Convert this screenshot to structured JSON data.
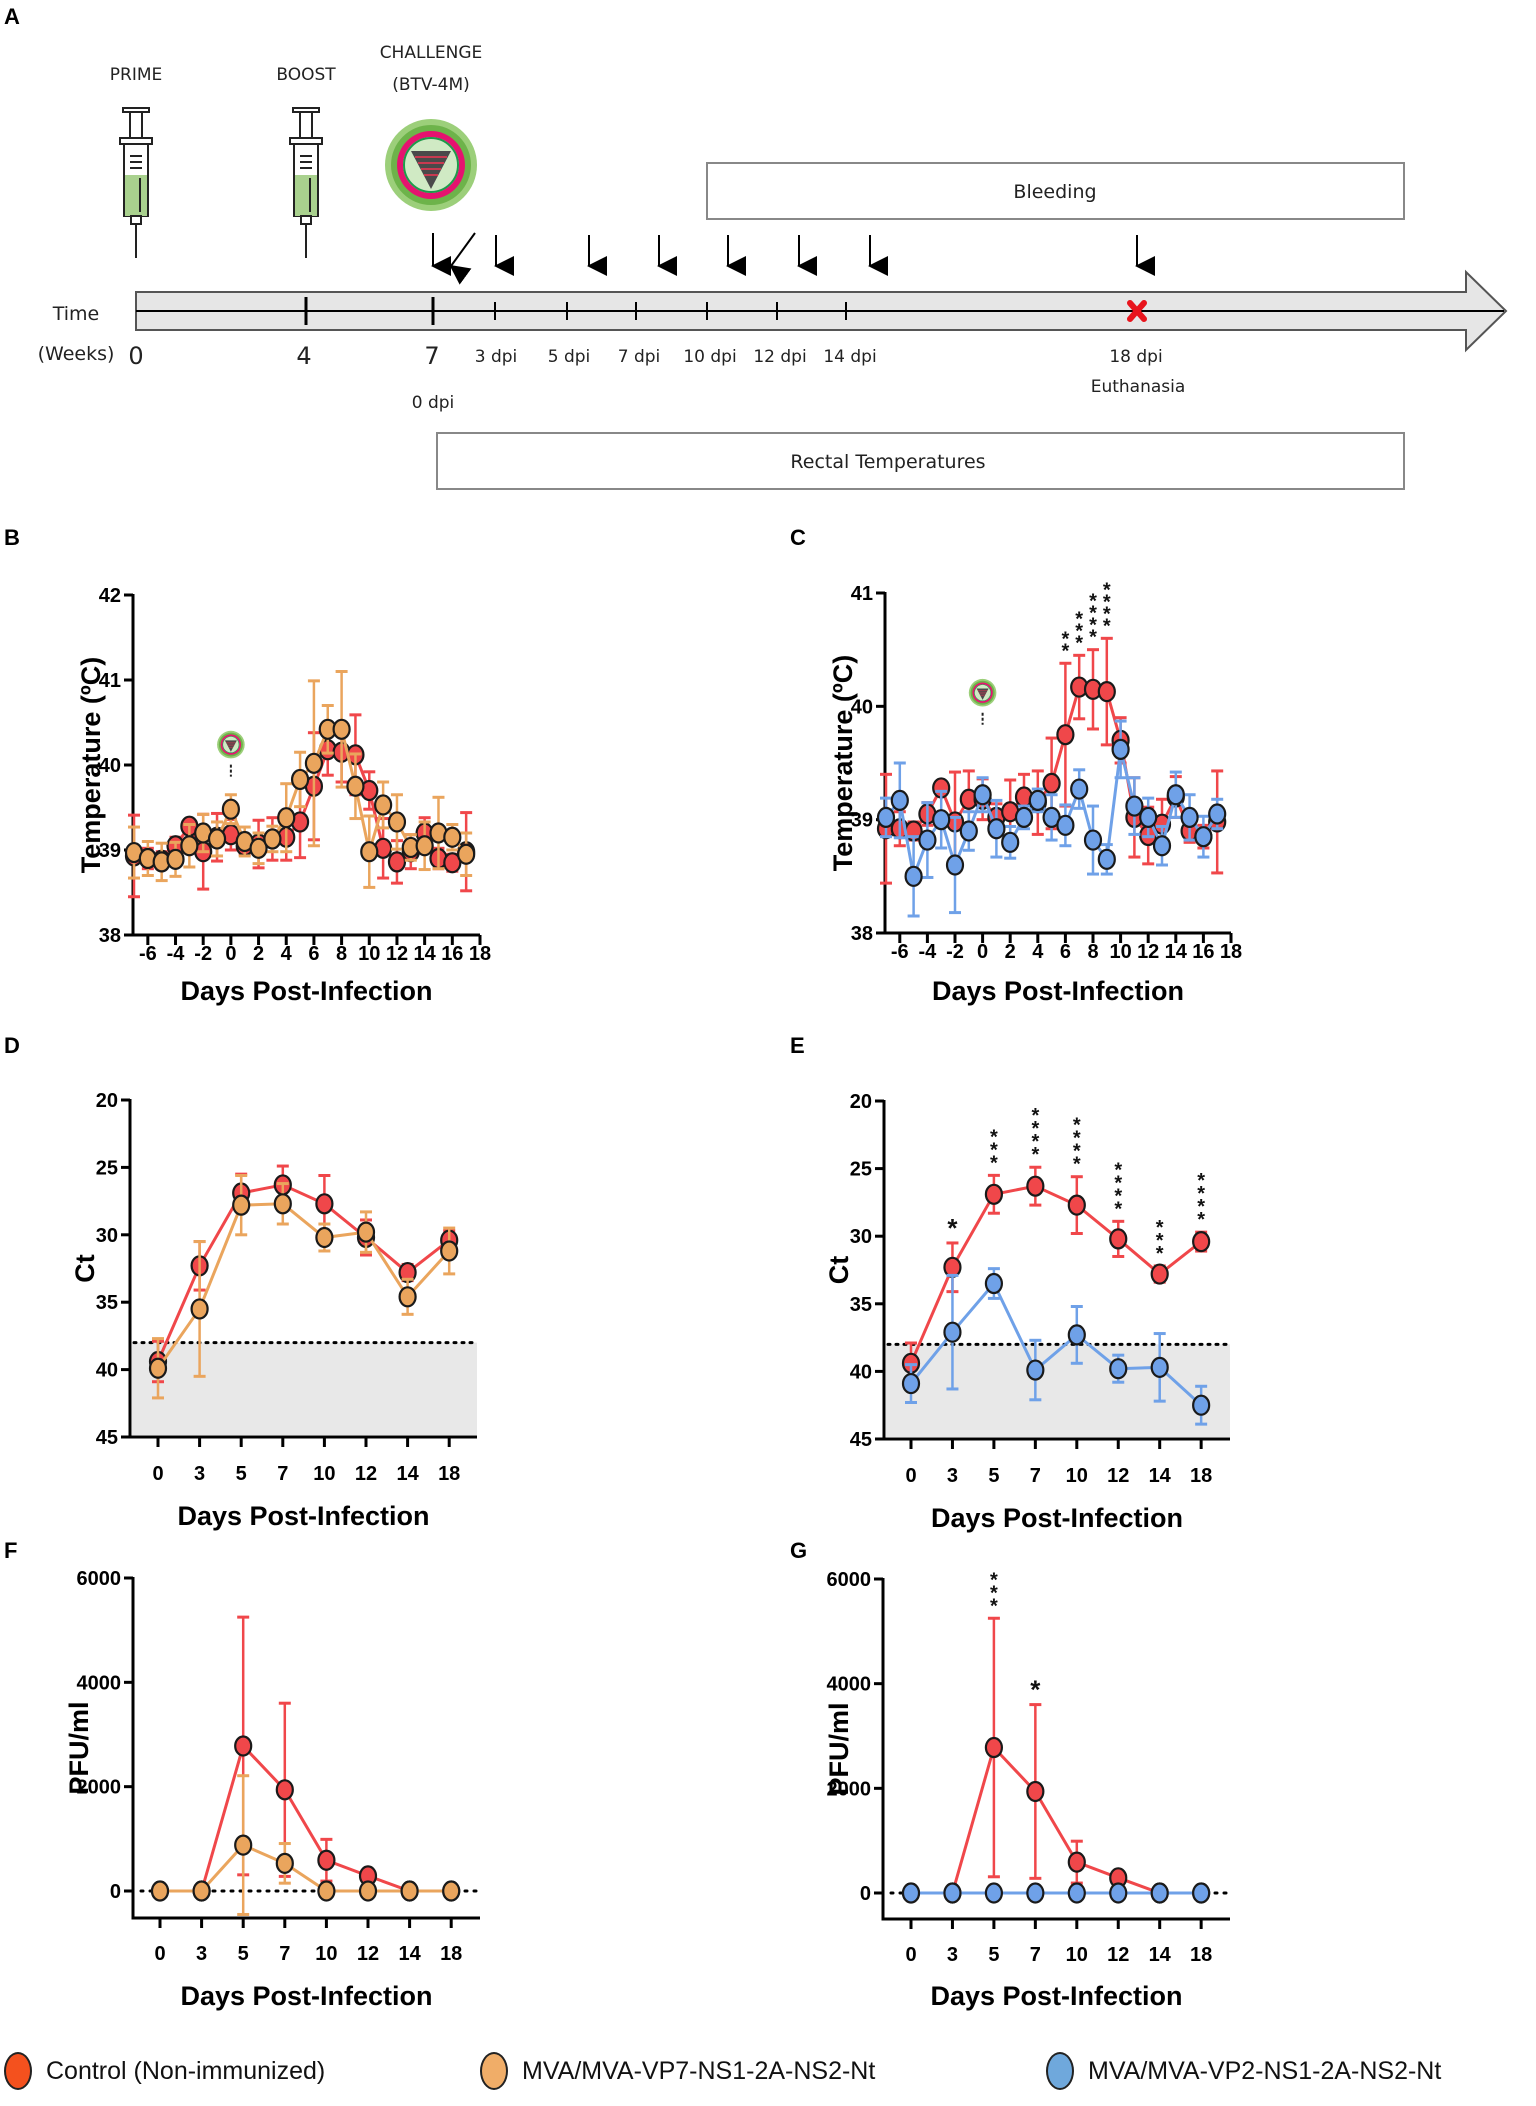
{
  "figure": {
    "panel_labels": [
      "A",
      "B",
      "C",
      "D",
      "E",
      "F",
      "G"
    ]
  },
  "timeline": {
    "events": {
      "prime": "PRIME",
      "boost": "BOOST",
      "challenge_line1": "CHALLENGE",
      "challenge_line2": "(BTV-4M)"
    },
    "time_label_line1": "Time",
    "time_label_line2": "(Weeks)",
    "week_ticks": [
      "0",
      "4",
      "7"
    ],
    "zero_dpi": "0 dpi",
    "dpi_ticks": [
      "3 dpi",
      "5 dpi",
      "7 dpi",
      "10 dpi",
      "12 dpi",
      "14 dpi",
      "18 dpi"
    ],
    "euthanasia": "Euthanasia",
    "bleeding_label": "Bleeding",
    "rectal_label": "Rectal Temperatures",
    "colors": {
      "syringe_fill": "#a9d18e",
      "bar_fill": "#e6e6e6",
      "euthanasia_x": "#e8141c"
    }
  },
  "legend": {
    "items": [
      {
        "label": "Control (Non-immunized)",
        "color": "#f4511e"
      },
      {
        "label": "MVA/MVA-VP7-NS1-2A-NS2-Nt",
        "color": "#f0ad68"
      },
      {
        "label": "MVA/MVA-VP2-NS1-2A-NS2-Nt",
        "color": "#6fa8dc"
      }
    ]
  },
  "chart_data": [
    {
      "panel": "B",
      "type": "line",
      "xlabel": "Days Post-Infection",
      "ylabel": "Temperature (ºC)",
      "xlim": [
        -7,
        18
      ],
      "ylim": [
        38,
        42
      ],
      "xticks": [
        "-6",
        "-4",
        "-2",
        "0",
        "2",
        "4",
        "6",
        "8",
        "10",
        "12",
        "14",
        "16",
        "18"
      ],
      "yticks": [
        "38",
        "39",
        "40",
        "41",
        "42"
      ],
      "annotation": "virus challenge icon at day 0",
      "x": [
        -7,
        -6,
        -5,
        -4,
        -3,
        -2,
        -1,
        0,
        1,
        2,
        3,
        4,
        5,
        6,
        7,
        8,
        9,
        10,
        11,
        12,
        13,
        14,
        15,
        16,
        17
      ],
      "series": [
        {
          "name": "Control (Non-immunized)",
          "color": "#f0474a",
          "values": [
            38.93,
            38.9,
            38.88,
            39.05,
            39.28,
            38.98,
            39.15,
            39.18,
            39.05,
            39.07,
            39.13,
            39.15,
            39.33,
            39.75,
            40.18,
            40.15,
            40.12,
            39.7,
            39.02,
            38.86,
            38.98,
            39.2,
            38.9,
            38.85,
            38.98
          ],
          "err": [
            0.48,
            0.12,
            0.1,
            0.1,
            0.05,
            0.44,
            0.28,
            0.18,
            0.1,
            0.28,
            0.25,
            0.27,
            0.42,
            0.63,
            0.3,
            0.35,
            0.47,
            0.22,
            0.35,
            0.25,
            0.2,
            0.18,
            0.12,
            0.1,
            0.46
          ]
        },
        {
          "name": "MVA/MVA-VP7-NS1-2A-NS2-Nt",
          "color": "#eaa55d",
          "values": [
            38.97,
            38.9,
            38.86,
            38.89,
            39.05,
            39.2,
            39.13,
            39.48,
            39.1,
            39.02,
            39.13,
            39.38,
            39.83,
            40.02,
            40.42,
            40.42,
            39.75,
            38.98,
            39.53,
            39.33,
            39.03,
            39.05,
            39.2,
            39.15,
            38.95
          ],
          "err": [
            0.3,
            0.2,
            0.22,
            0.2,
            0.25,
            0.22,
            0.2,
            0.17,
            0.17,
            0.18,
            0.15,
            0.4,
            0.32,
            0.97,
            0.28,
            0.68,
            0.38,
            0.42,
            0.27,
            0.32,
            0.15,
            0.28,
            0.42,
            0.15,
            0.25
          ]
        }
      ]
    },
    {
      "panel": "C",
      "type": "line",
      "xlabel": "Days Post-Infection",
      "ylabel": "Temperature (ºC)",
      "xlim": [
        -7,
        18
      ],
      "ylim": [
        38,
        41
      ],
      "xticks": [
        "-6",
        "-4",
        "-2",
        "0",
        "2",
        "4",
        "6",
        "8",
        "10",
        "12",
        "14",
        "16",
        "18"
      ],
      "yticks": [
        "38",
        "39",
        "40",
        "41"
      ],
      "annotation": "virus challenge icon at day 0",
      "significance": [
        {
          "x": 6,
          "label": "**"
        },
        {
          "x": 7,
          "label": "***"
        },
        {
          "x": 8,
          "label": "****"
        },
        {
          "x": 9,
          "label": "****"
        }
      ],
      "x": [
        -7,
        -6,
        -5,
        -4,
        -3,
        -2,
        -1,
        0,
        1,
        2,
        3,
        4,
        5,
        6,
        7,
        8,
        9,
        10,
        11,
        12,
        13,
        14,
        15,
        16,
        17
      ],
      "series": [
        {
          "name": "Control (Non-immunized)",
          "color": "#f0474a",
          "values": [
            38.92,
            38.92,
            38.9,
            39.05,
            39.28,
            38.98,
            39.18,
            39.18,
            39.02,
            39.07,
            39.2,
            39.15,
            39.32,
            39.75,
            40.17,
            40.15,
            40.13,
            39.7,
            39.02,
            38.86,
            38.96,
            39.2,
            38.9,
            38.85,
            38.98
          ],
          "err": [
            0.48,
            0.15,
            0.08,
            0.1,
            0.05,
            0.44,
            0.25,
            0.18,
            0.12,
            0.28,
            0.2,
            0.28,
            0.4,
            0.63,
            0.28,
            0.35,
            0.47,
            0.2,
            0.35,
            0.25,
            0.22,
            0.18,
            0.1,
            0.1,
            0.45
          ]
        },
        {
          "name": "MVA/MVA-VP2-NS1-2A-NS2-Nt",
          "color": "#6fa1e8",
          "values": [
            39.02,
            39.17,
            38.5,
            38.82,
            39.0,
            38.6,
            38.9,
            39.22,
            38.92,
            38.8,
            39.02,
            39.17,
            39.02,
            38.95,
            39.27,
            38.82,
            38.65,
            39.62,
            39.12,
            39.02,
            38.77,
            39.22,
            39.02,
            38.85,
            39.05
          ],
          "err": [
            0.17,
            0.33,
            0.35,
            0.33,
            0.25,
            0.42,
            0.17,
            0.15,
            0.25,
            0.14,
            0.1,
            0.1,
            0.2,
            0.18,
            0.17,
            0.3,
            0.13,
            0.25,
            0.25,
            0.17,
            0.17,
            0.2,
            0.2,
            0.18,
            0.13
          ]
        }
      ]
    },
    {
      "panel": "D",
      "type": "line",
      "xlabel": "Days Post-Infection",
      "ylabel": "Ct",
      "y_inverted": true,
      "ylim": [
        45,
        20
      ],
      "categories": [
        "0",
        "3",
        "5",
        "7",
        "10",
        "12",
        "14",
        "18"
      ],
      "yticks": [
        "20",
        "25",
        "30",
        "35",
        "40",
        "45"
      ],
      "detection_limit": 38,
      "shaded_region": [
        38,
        45
      ],
      "series": [
        {
          "name": "Control (Non-immunized)",
          "color": "#f0474a",
          "values": [
            39.4,
            32.3,
            26.9,
            26.3,
            27.7,
            30.2,
            32.8,
            30.4
          ],
          "err": [
            1.5,
            1.8,
            1.4,
            1.4,
            2.1,
            1.3,
            0.6,
            0.7
          ]
        },
        {
          "name": "MVA/MVA-VP7-NS1-2A-NS2-Nt",
          "color": "#eaa55d",
          "values": [
            39.9,
            35.5,
            27.8,
            27.7,
            30.2,
            29.8,
            34.6,
            31.2
          ],
          "err": [
            2.2,
            5.0,
            2.2,
            1.5,
            1.0,
            1.5,
            1.3,
            1.7
          ]
        }
      ]
    },
    {
      "panel": "E",
      "type": "line",
      "xlabel": "Days Post-Infection",
      "ylabel": "Ct",
      "y_inverted": true,
      "ylim": [
        45,
        20
      ],
      "categories": [
        "0",
        "3",
        "5",
        "7",
        "10",
        "12",
        "14",
        "18"
      ],
      "yticks": [
        "20",
        "25",
        "30",
        "35",
        "40",
        "45"
      ],
      "detection_limit": 38,
      "shaded_region": [
        38,
        45
      ],
      "significance": [
        {
          "x": "3",
          "label": "*"
        },
        {
          "x": "5",
          "label": "***"
        },
        {
          "x": "7",
          "label": "****"
        },
        {
          "x": "10",
          "label": "****"
        },
        {
          "x": "12",
          "label": "****"
        },
        {
          "x": "14",
          "label": "***"
        },
        {
          "x": "18",
          "label": "****"
        }
      ],
      "series": [
        {
          "name": "Control (Non-immunized)",
          "color": "#f0474a",
          "values": [
            39.4,
            32.3,
            26.9,
            26.3,
            27.7,
            30.2,
            32.8,
            30.4
          ],
          "err": [
            1.5,
            1.8,
            1.4,
            1.4,
            2.1,
            1.3,
            0.6,
            0.7
          ]
        },
        {
          "name": "MVA/MVA-VP2-NS1-2A-NS2-Nt",
          "color": "#6fa1e8",
          "values": [
            40.9,
            37.1,
            33.5,
            39.9,
            37.3,
            39.8,
            39.7,
            42.5
          ],
          "err": [
            1.4,
            4.2,
            1.1,
            2.2,
            2.1,
            1.0,
            2.5,
            1.4
          ]
        }
      ]
    },
    {
      "panel": "F",
      "type": "line",
      "xlabel": "Days Post-Infection",
      "ylabel": "PFU/ml",
      "ylim": [
        -500,
        6000
      ],
      "categories": [
        "0",
        "3",
        "5",
        "7",
        "10",
        "12",
        "14",
        "18"
      ],
      "yticks": [
        "0",
        "2000",
        "4000",
        "6000"
      ],
      "baseline": 0,
      "series": [
        {
          "name": "Control (Non-immunized)",
          "color": "#f0474a",
          "values": [
            0,
            0,
            2780,
            1940,
            590,
            290,
            0,
            0
          ],
          "err": [
            0,
            0,
            2470,
            1660,
            400,
            0,
            0,
            0
          ]
        },
        {
          "name": "MVA/MVA-VP7-NS1-2A-NS2-Nt",
          "color": "#eaa55d",
          "values": [
            0,
            0,
            880,
            530,
            0,
            0,
            0,
            0
          ],
          "err": [
            0,
            0,
            1330,
            380,
            0,
            0,
            0,
            0
          ]
        }
      ]
    },
    {
      "panel": "G",
      "type": "line",
      "xlabel": "Days Post-Infection",
      "ylabel": "PFU/ml",
      "ylim": [
        -500,
        6000
      ],
      "categories": [
        "0",
        "3",
        "5",
        "7",
        "10",
        "12",
        "14",
        "18"
      ],
      "yticks": [
        "0",
        "2000",
        "4000",
        "6000"
      ],
      "baseline": 0,
      "significance": [
        {
          "x": "5",
          "label": "***"
        },
        {
          "x": "7",
          "label": "*"
        }
      ],
      "series": [
        {
          "name": "Control (Non-immunized)",
          "color": "#f0474a",
          "values": [
            0,
            0,
            2780,
            1940,
            590,
            290,
            0,
            0
          ],
          "err": [
            0,
            0,
            2470,
            1660,
            400,
            0,
            0,
            0
          ]
        },
        {
          "name": "MVA/MVA-VP2-NS1-2A-NS2-Nt",
          "color": "#6fa1e8",
          "values": [
            0,
            0,
            0,
            0,
            0,
            0,
            0,
            0
          ],
          "err": [
            0,
            0,
            0,
            0,
            0,
            0,
            0,
            0
          ]
        }
      ]
    }
  ]
}
